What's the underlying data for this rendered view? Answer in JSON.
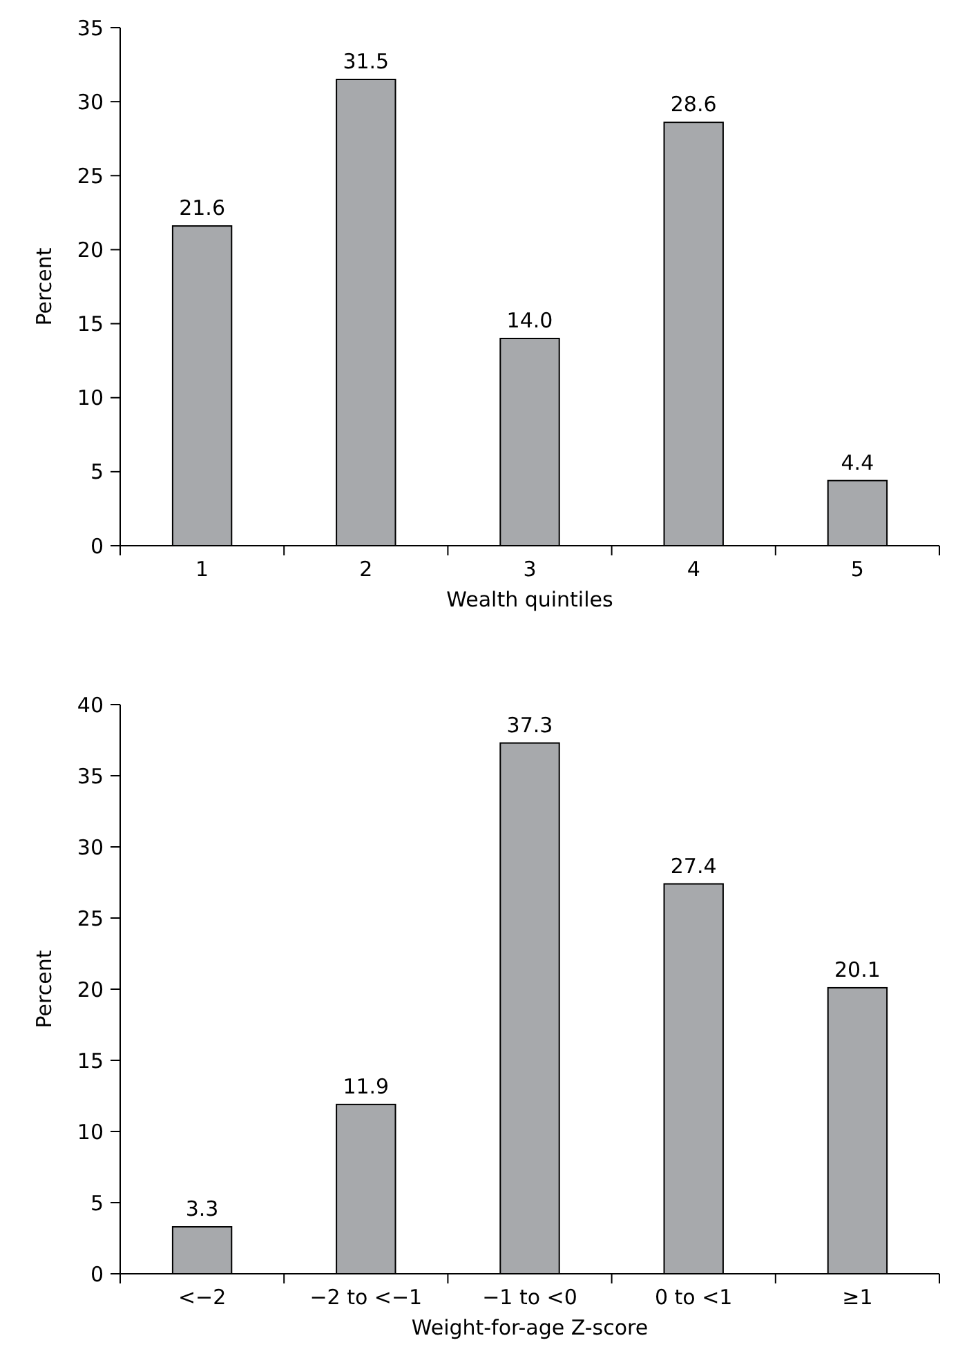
{
  "chart_data": [
    {
      "type": "bar",
      "xlabel": "Wealth quintiles",
      "ylabel": "Percent",
      "categories": [
        "1",
        "2",
        "3",
        "4",
        "5"
      ],
      "values": [
        21.6,
        31.5,
        14.0,
        28.6,
        4.4
      ],
      "value_labels": [
        "21.6",
        "31.5",
        "14.0",
        "28.6",
        "4.4"
      ],
      "color": "#a7a9ac",
      "ylim": [
        0,
        35
      ],
      "yticks": [
        0,
        5,
        10,
        15,
        20,
        25,
        30,
        35
      ],
      "grid": false
    },
    {
      "type": "bar",
      "xlabel": "Weight-for-age Z-score",
      "ylabel": "Percent",
      "categories": [
        "<−2",
        "−2 to <−1",
        "−1 to <0",
        "0 to <1",
        "≥1"
      ],
      "values": [
        3.3,
        11.9,
        37.3,
        27.4,
        20.1
      ],
      "value_labels": [
        "3.3",
        "11.9",
        "37.3",
        "27.4",
        "20.1"
      ],
      "color": "#a7a9ac",
      "ylim": [
        0,
        40
      ],
      "yticks": [
        0,
        5,
        10,
        15,
        20,
        25,
        30,
        35,
        40
      ],
      "grid": false
    }
  ]
}
